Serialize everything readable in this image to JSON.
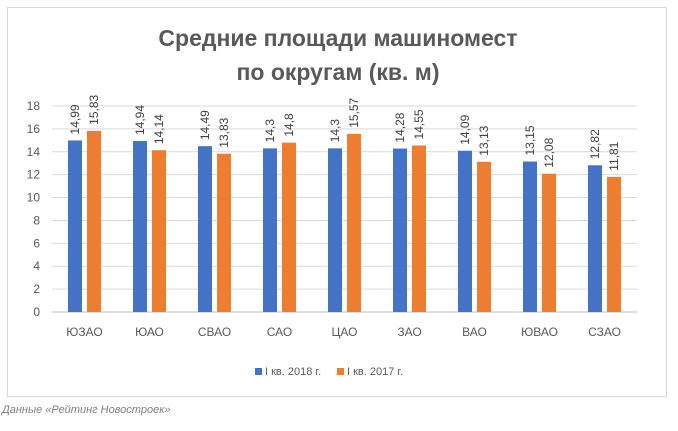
{
  "chart_data": {
    "type": "bar",
    "title_line1": "Средние площади машиномест",
    "title_line2": "по округам (кв. м)",
    "categories": [
      "ЮЗАО",
      "ЮАО",
      "СВАО",
      "САО",
      "ЦАО",
      "ЗАО",
      "ВАО",
      "ЮВАО",
      "СЗАО"
    ],
    "series": [
      {
        "name": "I кв. 2018 г.",
        "color": "#4472c4",
        "values": [
          14.99,
          14.94,
          14.49,
          14.3,
          14.3,
          14.28,
          14.09,
          13.15,
          12.82
        ],
        "labels": [
          "14,99",
          "14,94",
          "14,49",
          "14,3",
          "14,3",
          "14,28",
          "14,09",
          "13,15",
          "12,82"
        ]
      },
      {
        "name": "I кв. 2017 г.",
        "color": "#ed7d31",
        "values": [
          15.83,
          14.14,
          13.83,
          14.8,
          15.57,
          14.55,
          13.13,
          12.08,
          11.81
        ],
        "labels": [
          "15,83",
          "14,14",
          "13,83",
          "14,8",
          "15,57",
          "14,55",
          "13,13",
          "12,08",
          "11,81"
        ]
      }
    ],
    "yticks": [
      "0",
      "2",
      "4",
      "6",
      "8",
      "10",
      "12",
      "14",
      "16",
      "18"
    ],
    "ylim": [
      0,
      18
    ],
    "grid": true,
    "legend": "bottom",
    "xlabel": "",
    "ylabel": ""
  },
  "caption": "Данные «Рейтинг Новостроек»"
}
